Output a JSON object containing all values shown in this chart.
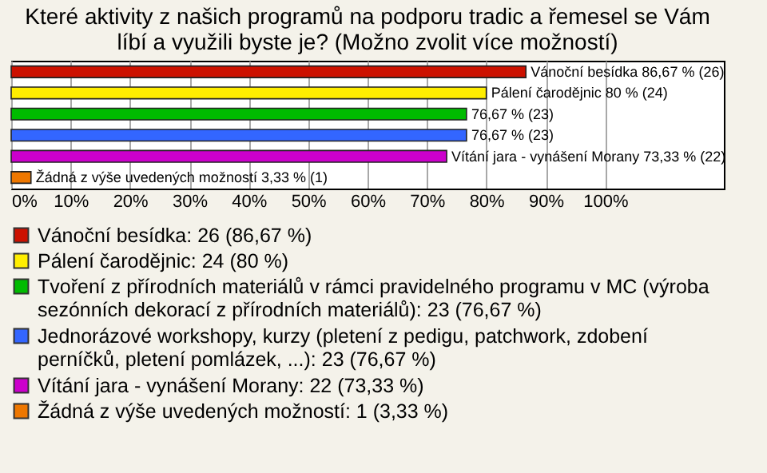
{
  "chart_data": {
    "type": "bar",
    "orientation": "horizontal",
    "title": "Které aktivity z našich programů na podporu tradic a řemesel se Vám líbí a využili byste je? (Možno zvolit více možností)",
    "categories": [
      null,
      null,
      null,
      null,
      null,
      null
    ],
    "series": [
      {
        "name": "Vánoční besídka: 26 (86,67 %)",
        "color": "#cc1100",
        "values": [
          86.67,
          null,
          null,
          null,
          null,
          null
        ],
        "value_labels": [
          "Vánoční besídka 86,67 % (26)",
          null,
          null,
          null,
          null,
          null
        ]
      },
      {
        "name": "Pálení čarodějnic: 24 (80 %)",
        "color": "#ffee00",
        "values": [
          null,
          80,
          null,
          null,
          null,
          null
        ],
        "value_labels": [
          null,
          "Pálení čarodějnic 80 % (24)",
          null,
          null,
          null,
          null
        ]
      },
      {
        "name": "Tvoření z přírodních materiálů v rámci pravidelného programu v MC (výroba sezónních dekorací z přírodních materiálů): 23 (76,67 %)",
        "color": "#00bb00",
        "values": [
          null,
          null,
          76.67,
          null,
          null,
          null
        ],
        "value_labels": [
          null,
          null,
          "76,67 % (23)",
          null,
          null,
          null
        ]
      },
      {
        "name": "Jednorázové workshopy, kurzy (pletení z pedigu, patchwork, zdobení perníčků, pletení pomlázek, ...): 23 (76,67 %)",
        "color": "#3366ff",
        "values": [
          null,
          null,
          null,
          76.67,
          null,
          null
        ],
        "value_labels": [
          null,
          null,
          null,
          "76,67 % (23)",
          null,
          null
        ]
      },
      {
        "name": "Vítání jara - vynášení Morany: 22 (73,33 %)",
        "color": "#cc00cc",
        "values": [
          null,
          null,
          null,
          null,
          73.33,
          null
        ],
        "value_labels": [
          null,
          null,
          null,
          null,
          "Vítání jara - vynášení Morany 73,33 % (22)",
          null
        ]
      },
      {
        "name": "Žádná z výše uvedených možností: 1 (3,33 %)",
        "color": "#ee7700",
        "values": [
          null,
          null,
          null,
          null,
          null,
          3.33
        ],
        "value_labels": [
          null,
          null,
          null,
          null,
          null,
          "Žádná z výše uvedených možností 3,33 % (1)"
        ]
      }
    ],
    "xlim": [
      0,
      120
    ],
    "xticks": [
      {
        "value": 0,
        "label": "0%"
      },
      {
        "value": 10,
        "label": "10%"
      },
      {
        "value": 20,
        "label": "20%"
      },
      {
        "value": 30,
        "label": "30%"
      },
      {
        "value": 40,
        "label": "40%"
      },
      {
        "value": 50,
        "label": "50%"
      },
      {
        "value": 60,
        "label": "60%"
      },
      {
        "value": 70,
        "label": "70%"
      },
      {
        "value": 80,
        "label": "80%"
      },
      {
        "value": 90,
        "label": "90%"
      },
      {
        "value": 100,
        "label": "100%"
      }
    ],
    "grid": "x",
    "legend": "bottom",
    "tick_labels": "x"
  }
}
